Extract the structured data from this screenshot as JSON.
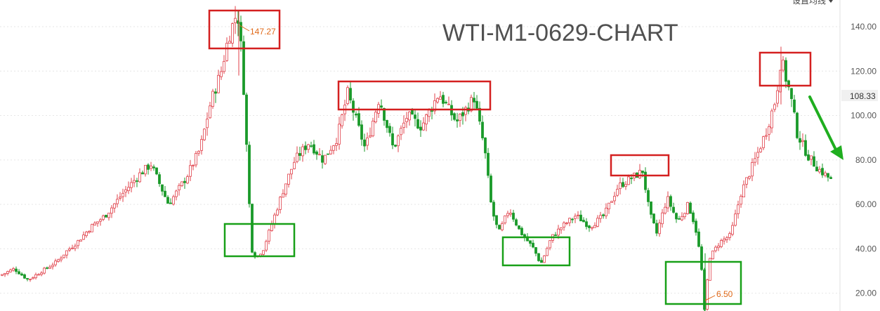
{
  "menu": {
    "ma_settings_label": "设置均线"
  },
  "colors": {
    "up": "#e0404a",
    "down": "#1a9a2a",
    "grid": "#e6e6e6",
    "box_red": "#d42020",
    "box_green": "#18a018",
    "arrow": "#1fae1f",
    "annotation": "#e06a1a"
  },
  "chart_data": {
    "type": "candlestick",
    "title": "WTI-M1-0629-CHART",
    "ylim": [
      12,
      152
    ],
    "y_ticks": [
      "140.00",
      "120.00",
      "100.00",
      "80.00",
      "60.00",
      "40.00",
      "20.00"
    ],
    "last_price_label": "108.33",
    "annotations": [
      {
        "label": "147.27",
        "value": 147.27,
        "type": "high"
      },
      {
        "label": "6.50",
        "value": 6.5,
        "type": "low"
      }
    ],
    "close_path": [
      [
        0,
        28
      ],
      [
        20,
        31
      ],
      [
        40,
        26
      ],
      [
        60,
        30
      ],
      [
        80,
        34
      ],
      [
        95,
        39
      ],
      [
        110,
        43
      ],
      [
        130,
        50
      ],
      [
        150,
        55
      ],
      [
        175,
        65
      ],
      [
        200,
        74
      ],
      [
        215,
        78
      ],
      [
        240,
        60
      ],
      [
        265,
        72
      ],
      [
        285,
        85
      ],
      [
        300,
        106
      ],
      [
        315,
        120
      ],
      [
        325,
        135
      ],
      [
        338,
        147
      ],
      [
        345,
        125
      ],
      [
        352,
        80
      ],
      [
        358,
        40
      ],
      [
        365,
        36
      ],
      [
        375,
        40
      ],
      [
        390,
        54
      ],
      [
        405,
        68
      ],
      [
        420,
        80
      ],
      [
        440,
        88
      ],
      [
        460,
        80
      ],
      [
        480,
        90
      ],
      [
        495,
        110
      ],
      [
        505,
        100
      ],
      [
        520,
        85
      ],
      [
        540,
        108
      ],
      [
        560,
        85
      ],
      [
        580,
        100
      ],
      [
        600,
        95
      ],
      [
        625,
        110
      ],
      [
        650,
        97
      ],
      [
        675,
        108
      ],
      [
        690,
        85
      ],
      [
        700,
        58
      ],
      [
        710,
        47
      ],
      [
        725,
        58
      ],
      [
        740,
        48
      ],
      [
        760,
        40
      ],
      [
        770,
        33
      ],
      [
        785,
        45
      ],
      [
        800,
        50
      ],
      [
        820,
        55
      ],
      [
        840,
        50
      ],
      [
        860,
        55
      ],
      [
        880,
        68
      ],
      [
        900,
        72
      ],
      [
        915,
        75
      ],
      [
        925,
        56
      ],
      [
        935,
        47
      ],
      [
        950,
        63
      ],
      [
        965,
        52
      ],
      [
        980,
        60
      ],
      [
        990,
        50
      ],
      [
        998,
        35
      ],
      [
        1003,
        12
      ],
      [
        1010,
        36
      ],
      [
        1025,
        43
      ],
      [
        1040,
        46
      ],
      [
        1055,
        65
      ],
      [
        1075,
        80
      ],
      [
        1090,
        92
      ],
      [
        1105,
        108
      ],
      [
        1112,
        126
      ],
      [
        1118,
        118
      ],
      [
        1125,
        110
      ],
      [
        1135,
        92
      ],
      [
        1150,
        82
      ],
      [
        1165,
        76
      ],
      [
        1180,
        72
      ],
      [
        1185,
        70
      ]
    ],
    "highlight_boxes": [
      {
        "color": "red",
        "kind": "peak",
        "label": ""
      },
      {
        "color": "red",
        "kind": "peak",
        "label": ""
      },
      {
        "color": "red",
        "kind": "peak",
        "label": ""
      },
      {
        "color": "red",
        "kind": "peak",
        "label": ""
      },
      {
        "color": "green",
        "kind": "trough",
        "label": ""
      },
      {
        "color": "green",
        "kind": "trough",
        "label": ""
      },
      {
        "color": "green",
        "kind": "trough",
        "label": ""
      }
    ]
  }
}
